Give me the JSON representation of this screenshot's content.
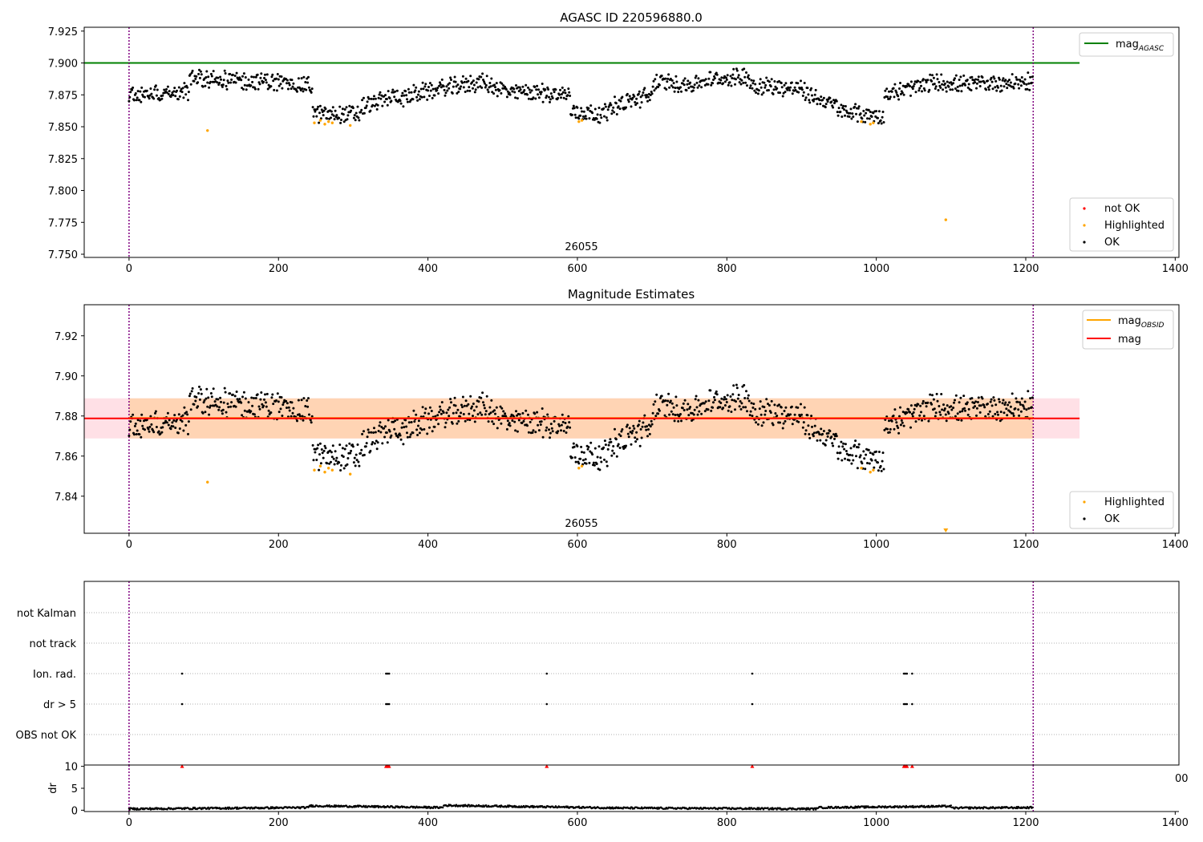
{
  "chart_data": [
    {
      "panel": "agasc-magnitude",
      "type": "scatter",
      "title": "AGASC ID 220596880.0",
      "xlim": [
        -60,
        1405
      ],
      "ylim": [
        7.7475,
        7.928
      ],
      "x_ticks": [
        0,
        200,
        400,
        600,
        800,
        1000,
        1200,
        1400
      ],
      "y_ticks": [
        7.75,
        7.775,
        7.8,
        7.825,
        7.85,
        7.875,
        7.9,
        7.925
      ],
      "y_tick_labels": [
        "7.750",
        "7.775",
        "7.800",
        "7.825",
        "7.850",
        "7.875",
        "7.900",
        "7.925"
      ],
      "obsid_label": "26055",
      "obsid_label_x": 600,
      "obs_boundaries": [
        0,
        1210
      ],
      "hline": {
        "name": "mag_AGASC",
        "y": 7.9,
        "x_range": [
          -60,
          1272
        ],
        "color": "#008000"
      },
      "legend_lines": [
        {
          "label_main": "mag",
          "label_sub": "AGASC",
          "color": "#008000"
        }
      ],
      "legend_points": [
        {
          "label": "not OK",
          "color": "#ff0000"
        },
        {
          "label": "Highlighted",
          "color": "#ffa500"
        },
        {
          "label": "OK",
          "color": "#000000"
        }
      ],
      "series": [
        {
          "name": "OK",
          "color": "#000000",
          "x_range": [
            0,
            1210
          ],
          "count": 1210
        },
        {
          "name": "Highlighted",
          "color": "#ffa500",
          "points": [
            [
              105,
              7.847
            ],
            [
              248,
              7.853
            ],
            [
              256,
              7.855
            ],
            [
              262,
              7.852
            ],
            [
              267,
              7.854
            ],
            [
              272,
              7.853
            ],
            [
              296,
              7.851
            ],
            [
              602,
              7.854
            ],
            [
              606,
              7.855
            ],
            [
              980,
              7.854
            ],
            [
              992,
              7.852
            ],
            [
              996,
              7.853
            ],
            [
              1093,
              7.777
            ]
          ]
        }
      ],
      "trend": {
        "name": "mag",
        "segments": [
          {
            "x": [
              0,
              80
            ],
            "y": [
              7.875,
              7.878
            ]
          },
          {
            "x": [
              80,
              180
            ],
            "y": [
              7.888,
              7.885
            ]
          },
          {
            "x": [
              180,
              245
            ],
            "y": [
              7.886,
              7.882
            ]
          },
          {
            "x": [
              245,
              310
            ],
            "y": [
              7.86,
              7.86
            ]
          },
          {
            "x": [
              310,
              360
            ],
            "y": [
              7.865,
              7.875
            ]
          },
          {
            "x": [
              360,
              400
            ],
            "y": [
              7.872,
              7.878
            ]
          },
          {
            "x": [
              400,
              470
            ],
            "y": [
              7.878,
              7.885
            ]
          },
          {
            "x": [
              470,
              520
            ],
            "y": [
              7.885,
              7.875
            ]
          },
          {
            "x": [
              520,
              590
            ],
            "y": [
              7.878,
              7.875
            ]
          },
          {
            "x": [
              590,
              640
            ],
            "y": [
              7.862,
              7.86
            ]
          },
          {
            "x": [
              640,
              700
            ],
            "y": [
              7.865,
              7.875
            ]
          },
          {
            "x": [
              700,
              760
            ],
            "y": [
              7.885,
              7.883
            ]
          },
          {
            "x": [
              760,
              830
            ],
            "y": [
              7.885,
              7.89
            ]
          },
          {
            "x": [
              830,
              900
            ],
            "y": [
              7.883,
              7.88
            ]
          },
          {
            "x": [
              900,
              950
            ],
            "y": [
              7.878,
              7.865
            ]
          },
          {
            "x": [
              950,
              1010
            ],
            "y": [
              7.862,
              7.858
            ]
          },
          {
            "x": [
              1010,
              1080
            ],
            "y": [
              7.875,
              7.885
            ]
          },
          {
            "x": [
              1080,
              1130
            ],
            "y": [
              7.885,
              7.882
            ]
          },
          {
            "x": [
              1130,
              1210
            ],
            "y": [
              7.884,
              7.885
            ]
          }
        ]
      }
    },
    {
      "panel": "magnitude-estimates",
      "type": "scatter",
      "title": "Magnitude Estimates",
      "xlim": [
        -60,
        1405
      ],
      "ylim": [
        7.8215,
        7.9355
      ],
      "x_ticks": [
        0,
        200,
        400,
        600,
        800,
        1000,
        1200,
        1400
      ],
      "y_ticks": [
        7.84,
        7.86,
        7.88,
        7.9,
        7.92
      ],
      "y_tick_labels": [
        "7.84",
        "7.86",
        "7.88",
        "7.90",
        "7.92"
      ],
      "obsid_label": "26055",
      "obsid_label_x": 600,
      "obs_boundaries": [
        0,
        1210
      ],
      "mag": {
        "y": 7.8788,
        "x_range": [
          -60,
          1272
        ],
        "color": "#ff0000",
        "band": [
          7.8688,
          7.8888
        ],
        "band_color": "#ffe0e6"
      },
      "mag_obsid": {
        "y": 7.879,
        "x_range": [
          0,
          1210
        ],
        "color": "#ffa500",
        "band": [
          7.8688,
          7.8888
        ],
        "band_color": "#ffd4b4"
      },
      "legend_lines": [
        {
          "label_main": "mag",
          "label_sub": "OBSID",
          "color": "#ffa500"
        },
        {
          "label_main": "mag",
          "label_sub": "",
          "color": "#ff0000"
        }
      ],
      "legend_points": [
        {
          "label": "Highlighted",
          "color": "#ffa500"
        },
        {
          "label": "OK",
          "color": "#000000"
        }
      ],
      "below_limit_marker": {
        "x": 1093,
        "color": "#ffa500"
      }
    },
    {
      "panel": "flags",
      "type": "scatter",
      "xlim": [
        -60,
        1405
      ],
      "obs_boundaries": [
        0,
        1210
      ],
      "rows": [
        "not Kalman",
        "not track",
        "Ion. rad.",
        "dr > 5",
        "OBS not OK"
      ],
      "flag_points": {
        "Ion. rad.": [
          71,
          344,
          346,
          348,
          559,
          834,
          1037,
          1039,
          1041,
          1048
        ],
        "dr > 5": [
          71,
          344,
          346,
          348,
          559,
          834,
          1037,
          1039,
          1041,
          1048
        ]
      }
    },
    {
      "panel": "dr",
      "type": "scatter",
      "xlim": [
        -60,
        1405
      ],
      "ylim": [
        -0.3,
        10.3
      ],
      "ylabel": "dr",
      "y_ticks": [
        0,
        5,
        10
      ],
      "x_ticks": [
        0,
        200,
        400,
        600,
        800,
        1000,
        1200,
        1400
      ],
      "obs_boundaries": [
        0,
        1210
      ],
      "clipped_label": "00",
      "outliers": [
        71,
        344,
        346,
        348,
        559,
        834,
        1037,
        1039,
        1041,
        1048
      ],
      "outlier_color": "#ff0000",
      "dr_profile": [
        {
          "x": [
            0,
            240
          ],
          "y": [
            0.3,
            0.6
          ]
        },
        {
          "x": [
            240,
            420
          ],
          "y": [
            1.0,
            0.6
          ]
        },
        {
          "x": [
            420,
            660
          ],
          "y": [
            1.1,
            0.5
          ]
        },
        {
          "x": [
            660,
            920
          ],
          "y": [
            0.5,
            0.3
          ]
        },
        {
          "x": [
            920,
            1100
          ],
          "y": [
            0.6,
            0.9
          ]
        },
        {
          "x": [
            1100,
            1210
          ],
          "y": [
            0.5,
            0.6
          ]
        }
      ]
    }
  ]
}
